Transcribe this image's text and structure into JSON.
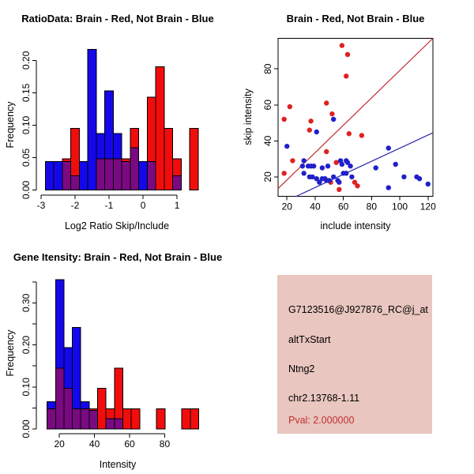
{
  "figure": {
    "background": "#FFFFFF"
  },
  "colors": {
    "hist_red": "#F20D0D",
    "hist_blue": "#1408EB",
    "overlap": "#7A0982",
    "point_red": "#DD2222",
    "point_blue": "#2020CB",
    "line_red": "#C22730",
    "line_blue": "#2B2BB0",
    "axis": "#000000",
    "info_bg": "#E9C6BF",
    "pval_red": "#C03030",
    "info_text": "#000000"
  },
  "chart_data": [
    {
      "id": "ratio_hist",
      "type": "bar",
      "title": "RatioData: Brain - Red, Not Brain - Blue",
      "xlabel": "Log2 Ratio Skip/Include",
      "ylabel": "Frequency",
      "legend": "overlaid histograms; purple = red/blue overlap",
      "bin_start": -2.875,
      "bin_width": 0.25,
      "xlim": [
        -3.1,
        1.55
      ],
      "ylim": [
        0,
        0.226
      ],
      "xticks": [
        -3,
        -2,
        -1,
        0,
        1
      ],
      "xtick_labels": [
        "-3",
        "-2",
        "-1",
        "0",
        "1"
      ],
      "yticks": [
        0,
        0.05,
        0.1,
        0.15,
        0.2
      ],
      "ytick_labels": [
        "0.00",
        "0.05",
        "0.10",
        "0.15",
        "0.20"
      ],
      "series": [
        {
          "name": "Not Brain",
          "color_key": "hist_blue",
          "values": [
            0.044,
            0.044,
            0.044,
            0.022,
            0.044,
            0.217,
            0.087,
            0.153,
            0.087,
            0.044,
            0.065,
            0.044,
            0.044,
            0,
            0,
            0.022,
            0,
            0
          ]
        },
        {
          "name": "Brain",
          "color_key": "hist_red",
          "values": [
            0,
            0,
            0.048,
            0.095,
            0,
            0,
            0.048,
            0.048,
            0.048,
            0.048,
            0.095,
            0,
            0.143,
            0.19,
            0.095,
            0.048,
            0,
            0.095
          ]
        }
      ]
    },
    {
      "id": "scatter",
      "type": "scatter",
      "title": "Brain - Red, Not Brain - Blue",
      "xlabel": "include intensity",
      "ylabel": "skip intensity",
      "xlim": [
        13.7,
        123.5
      ],
      "ylim": [
        9.2,
        97
      ],
      "xticks": [
        20,
        40,
        60,
        80,
        100,
        120
      ],
      "xtick_labels": [
        "20",
        "40",
        "60",
        "80",
        "100",
        "120"
      ],
      "yticks": [
        20,
        40,
        60,
        80
      ],
      "ytick_labels": [
        "20",
        "40",
        "60",
        "80"
      ],
      "series": [
        {
          "name": "Brain",
          "color_key": "point_red",
          "points": [
            [
              59,
              93
            ],
            [
              63,
              88
            ],
            [
              62,
              76
            ],
            [
              48,
              61
            ],
            [
              22,
              59
            ],
            [
              52,
              55
            ],
            [
              18,
              52
            ],
            [
              37,
              51
            ],
            [
              36,
              46
            ],
            [
              64,
              44
            ],
            [
              73,
              43
            ],
            [
              48,
              34
            ],
            [
              24,
              29
            ],
            [
              55,
              28
            ],
            [
              18,
              22
            ],
            [
              51,
              17
            ],
            [
              68,
              17
            ],
            [
              70,
              15
            ],
            [
              57,
              13
            ]
          ]
        },
        {
          "name": "Not Brain",
          "color_key": "point_blue",
          "points": [
            [
              53,
              52
            ],
            [
              41,
              45
            ],
            [
              20,
              37
            ],
            [
              32,
              29
            ],
            [
              58,
              29
            ],
            [
              62,
              29
            ],
            [
              31,
              26
            ],
            [
              35,
              26
            ],
            [
              37,
              26
            ],
            [
              39,
              26
            ],
            [
              45,
              25
            ],
            [
              49,
              26
            ],
            [
              59,
              27
            ],
            [
              63,
              28
            ],
            [
              65,
              26
            ],
            [
              32,
              22
            ],
            [
              36,
              20
            ],
            [
              38,
              20
            ],
            [
              41,
              19
            ],
            [
              43,
              17
            ],
            [
              45,
              19
            ],
            [
              47,
              19
            ],
            [
              48,
              18
            ],
            [
              50,
              18
            ],
            [
              53,
              20
            ],
            [
              56,
              18
            ],
            [
              57,
              17
            ],
            [
              60,
              22
            ],
            [
              62,
              22
            ],
            [
              66,
              20
            ],
            [
              83,
              25
            ],
            [
              92,
              36
            ],
            [
              92,
              14
            ],
            [
              97,
              27
            ],
            [
              103,
              20
            ],
            [
              112,
              20
            ],
            [
              114,
              19
            ],
            [
              120,
              16
            ]
          ]
        }
      ],
      "lines": [
        {
          "name": "brain-fit-line",
          "color_key": "line_red",
          "from": [
            13.7,
            13.5
          ],
          "to": [
            123.5,
            97
          ]
        },
        {
          "name": "notbrain-fit-line",
          "color_key": "line_blue",
          "from": [
            26.6,
            9.2
          ],
          "to": [
            123.5,
            44.5
          ]
        }
      ]
    },
    {
      "id": "gene_hist",
      "type": "bar",
      "title": "Gene Itensity: Brain - Red, Not Brain - Blue",
      "xlabel": "Intensity",
      "ylabel": "Frequency",
      "legend": "overlaid histograms; purple = red/blue overlap",
      "bin_start": 13,
      "bin_width": 4.8,
      "xlim": [
        7.2,
        99.6
      ],
      "ylim": [
        0,
        0.36
      ],
      "xticks": [
        20,
        40,
        60,
        80
      ],
      "xtick_labels": [
        "20",
        "40",
        "60",
        "80"
      ],
      "yticks": [
        0,
        0.05,
        0.1,
        0.15,
        0.2,
        0.25,
        0.3,
        0.35
      ],
      "ytick_labels": [
        "0.00",
        "",
        "0.10",
        "",
        "0.20",
        "",
        "0.30",
        ""
      ],
      "series": [
        {
          "name": "Not Brain",
          "color_key": "hist_blue",
          "values": [
            0.065,
            0.355,
            0.194,
            0.242,
            0.065,
            0.044,
            0,
            0.024,
            0.024,
            0,
            0,
            0,
            0,
            0,
            0,
            0,
            0,
            0
          ]
        },
        {
          "name": "Brain",
          "color_key": "hist_red",
          "values": [
            0.048,
            0.145,
            0.097,
            0.048,
            0.048,
            0.048,
            0.097,
            0.048,
            0.145,
            0.048,
            0.048,
            0,
            0,
            0.048,
            0,
            0,
            0.048,
            0.048
          ]
        }
      ]
    }
  ],
  "info_panel": {
    "lines": [
      {
        "text": "G7123516@J927876_RC@j_at",
        "color_key": "info_text"
      },
      {
        "text": "altTxStart",
        "color_key": "info_text"
      },
      {
        "text": "Ntng2",
        "color_key": "info_text"
      },
      {
        "text": "chr2.13768-1.11",
        "color_key": "info_text"
      },
      {
        "text": "Pval: 2.000000",
        "color_key": "pval_red"
      }
    ]
  }
}
